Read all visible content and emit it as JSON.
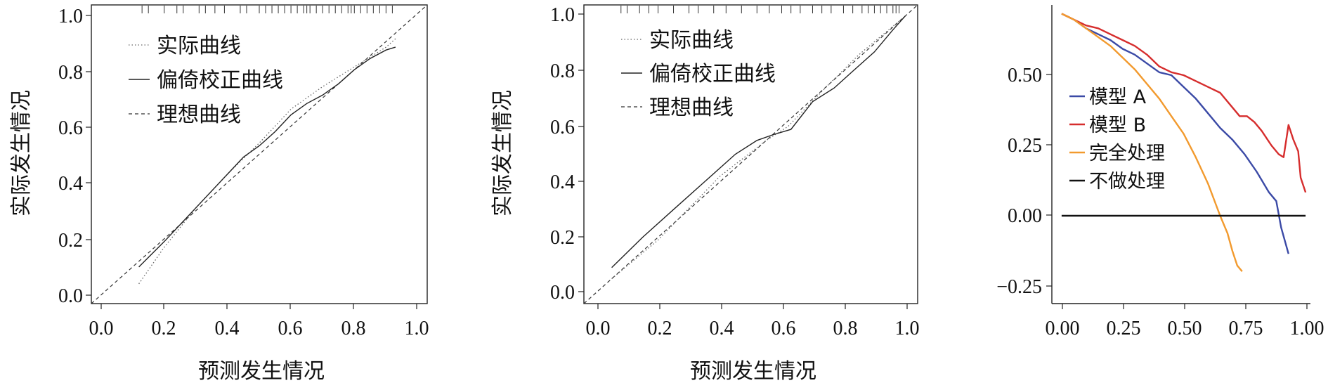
{
  "chart_data": [
    {
      "type": "line",
      "title": "",
      "xlabel": "预测发生情况",
      "ylabel": "实际发生情况",
      "xlim": [
        -0.03,
        1.03
      ],
      "ylim": [
        -0.03,
        1.03
      ],
      "xticks": [
        "0.0",
        "0.2",
        "0.4",
        "0.6",
        "0.8",
        "1.0"
      ],
      "yticks": [
        "0.0",
        "0.2",
        "0.4",
        "0.6",
        "0.8",
        "1.0"
      ],
      "legend_position": "top-left",
      "rug": [
        0.13,
        0.15,
        0.2,
        0.24,
        0.26,
        0.31,
        0.33,
        0.36,
        0.39,
        0.44,
        0.46,
        0.5,
        0.52,
        0.54,
        0.56,
        0.58,
        0.6,
        0.62,
        0.64,
        0.65,
        0.66,
        0.68,
        0.7,
        0.72,
        0.74,
        0.76,
        0.78,
        0.79,
        0.8,
        0.82,
        0.84,
        0.86,
        0.88,
        0.9,
        0.92
      ],
      "series": [
        {
          "name": "实际曲线",
          "style": "dotted",
          "x": [
            0.12,
            0.2,
            0.3,
            0.4,
            0.5,
            0.6,
            0.7,
            0.8,
            0.9,
            0.93
          ],
          "y": [
            0.04,
            0.17,
            0.31,
            0.43,
            0.54,
            0.66,
            0.74,
            0.81,
            0.88,
            0.91
          ]
        },
        {
          "name": "偏倚校正曲线",
          "style": "solid",
          "x": [
            0.12,
            0.2,
            0.3,
            0.4,
            0.45,
            0.5,
            0.55,
            0.6,
            0.65,
            0.7,
            0.75,
            0.8,
            0.85,
            0.9,
            0.93
          ],
          "y": [
            0.1,
            0.19,
            0.31,
            0.43,
            0.49,
            0.53,
            0.58,
            0.64,
            0.68,
            0.71,
            0.75,
            0.8,
            0.84,
            0.87,
            0.88
          ]
        },
        {
          "name": "理想曲线",
          "style": "dashed",
          "x": [
            -0.03,
            1.03
          ],
          "y": [
            -0.03,
            1.03
          ]
        }
      ]
    },
    {
      "type": "line",
      "title": "",
      "xlabel": "预测发生情况",
      "ylabel": "实际发生情况",
      "xlim": [
        -0.04,
        1.04
      ],
      "ylim": [
        -0.04,
        1.04
      ],
      "xticks": [
        "0.0",
        "0.2",
        "0.4",
        "0.6",
        "0.8",
        "1.0"
      ],
      "yticks": [
        "0.0",
        "0.2",
        "0.4",
        "0.6",
        "0.8",
        "1.0"
      ],
      "legend_position": "top-left",
      "rug": [
        0.08,
        0.1,
        0.14,
        0.17,
        0.2,
        0.25,
        0.3,
        0.33,
        0.38,
        0.42,
        0.47,
        0.52,
        0.56,
        0.6,
        0.63,
        0.66,
        0.7,
        0.73,
        0.76,
        0.8,
        0.83,
        0.86,
        0.88,
        0.9,
        0.92,
        0.94,
        0.96,
        0.97,
        0.98
      ],
      "series": [
        {
          "name": "实际曲线",
          "style": "dotted",
          "x": [
            0.05,
            0.2,
            0.4,
            0.55,
            0.62,
            0.75,
            0.85,
            1.0
          ],
          "y": [
            0.05,
            0.19,
            0.42,
            0.55,
            0.6,
            0.75,
            0.86,
            1.0
          ]
        },
        {
          "name": "偏倚校正曲线",
          "style": "solid",
          "x": [
            0.05,
            0.15,
            0.25,
            0.35,
            0.45,
            0.52,
            0.57,
            0.63,
            0.7,
            0.77,
            0.83,
            0.9,
            0.96,
            1.0
          ],
          "y": [
            0.09,
            0.2,
            0.3,
            0.4,
            0.5,
            0.55,
            0.57,
            0.59,
            0.69,
            0.74,
            0.8,
            0.87,
            0.95,
            1.0
          ]
        },
        {
          "name": "理想曲线",
          "style": "dashed",
          "x": [
            -0.04,
            1.04
          ],
          "y": [
            -0.04,
            1.04
          ]
        }
      ]
    },
    {
      "type": "line",
      "title": "",
      "xlabel": "",
      "ylabel": "",
      "xlim": [
        -0.04,
        1.02
      ],
      "ylim": [
        -0.3,
        0.72
      ],
      "xticks": [
        "0.00",
        "0.25",
        "0.50",
        "0.75",
        "1.00"
      ],
      "yticks": [
        "−0.25",
        "0.00",
        "0.25",
        "0.50"
      ],
      "legend_position": "middle-left",
      "series": [
        {
          "name": "模型 A",
          "color": "#3b4aa6",
          "x": [
            0.0,
            0.05,
            0.1,
            0.15,
            0.2,
            0.25,
            0.3,
            0.35,
            0.4,
            0.45,
            0.5,
            0.55,
            0.6,
            0.65,
            0.7,
            0.75,
            0.8,
            0.85,
            0.88,
            0.9,
            0.93
          ],
          "y": [
            0.69,
            0.67,
            0.64,
            0.62,
            0.6,
            0.57,
            0.55,
            0.52,
            0.49,
            0.48,
            0.44,
            0.4,
            0.35,
            0.3,
            0.26,
            0.21,
            0.15,
            0.08,
            0.05,
            -0.04,
            -0.13
          ]
        },
        {
          "name": "模型 B",
          "color": "#d62d2d",
          "x": [
            0.0,
            0.05,
            0.1,
            0.15,
            0.2,
            0.25,
            0.3,
            0.35,
            0.4,
            0.45,
            0.5,
            0.55,
            0.6,
            0.65,
            0.7,
            0.73,
            0.76,
            0.79,
            0.82,
            0.86,
            0.89,
            0.91,
            0.93,
            0.95,
            0.97,
            0.98,
            1.0
          ],
          "y": [
            0.69,
            0.67,
            0.65,
            0.64,
            0.62,
            0.6,
            0.58,
            0.55,
            0.51,
            0.49,
            0.48,
            0.46,
            0.44,
            0.42,
            0.37,
            0.34,
            0.34,
            0.32,
            0.29,
            0.24,
            0.21,
            0.2,
            0.31,
            0.26,
            0.22,
            0.13,
            0.08
          ]
        },
        {
          "name": "完全处理",
          "color": "#f29a2e",
          "x": [
            0.0,
            0.05,
            0.1,
            0.15,
            0.2,
            0.25,
            0.3,
            0.35,
            0.4,
            0.45,
            0.5,
            0.55,
            0.6,
            0.65,
            0.68,
            0.7,
            0.72,
            0.74
          ],
          "y": [
            0.69,
            0.67,
            0.64,
            0.61,
            0.58,
            0.54,
            0.5,
            0.45,
            0.4,
            0.34,
            0.28,
            0.2,
            0.11,
            0.0,
            -0.06,
            -0.12,
            -0.17,
            -0.19
          ]
        },
        {
          "name": "不做处理",
          "color": "#111111",
          "x": [
            0.0,
            1.0
          ],
          "y": [
            0.0,
            0.0
          ]
        }
      ]
    }
  ]
}
